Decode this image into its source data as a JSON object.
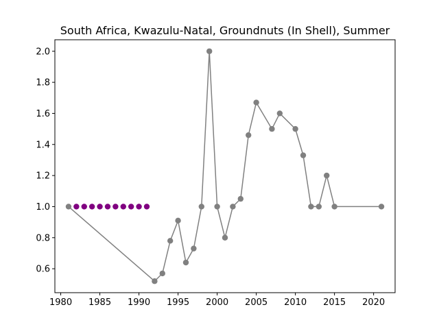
{
  "chart_data": {
    "type": "line",
    "title": "South Africa, Kwazulu-Natal, Groundnuts (In Shell), Summer",
    "xlabel": "",
    "ylabel": "",
    "xlim": [
      1979.25,
      2022.75
    ],
    "ylim": [
      0.446,
      2.074
    ],
    "grid": false,
    "x_ticks": [
      1980,
      1985,
      1990,
      1995,
      2000,
      2005,
      2010,
      2015,
      2020
    ],
    "x_tick_labels": [
      "1980",
      "1985",
      "1990",
      "1995",
      "2000",
      "2005",
      "2010",
      "2015",
      "2020"
    ],
    "y_ticks": [
      0.6,
      0.8,
      1.0,
      1.2,
      1.4,
      1.6,
      1.8,
      2.0
    ],
    "y_tick_labels": [
      "0.6",
      "0.8",
      "1.0",
      "1.2",
      "1.4",
      "1.6",
      "1.8",
      "2.0"
    ],
    "series": [
      {
        "name": "main",
        "x": [
          1981,
          1992,
          1993,
          1994,
          1995,
          1996,
          1997,
          1998,
          1999,
          2000,
          2001,
          2002,
          2003,
          2004,
          2005,
          2007,
          2008,
          2010,
          2011,
          2012,
          2013,
          2014,
          2015,
          2021
        ],
        "y": [
          1.0,
          0.52,
          0.57,
          0.78,
          0.91,
          0.64,
          0.73,
          1.0,
          2.0,
          1.0,
          0.8,
          1.0,
          1.05,
          1.46,
          1.67,
          1.5,
          1.6,
          1.5,
          1.33,
          1.0,
          1.0,
          1.2,
          1.0,
          1.0
        ]
      },
      {
        "name": "highlighted",
        "x": [
          1982,
          1983,
          1984,
          1985,
          1986,
          1987,
          1988,
          1989,
          1990,
          1991
        ],
        "y": [
          1.0,
          1.0,
          1.0,
          1.0,
          1.0,
          1.0,
          1.0,
          1.0,
          1.0,
          1.0
        ]
      }
    ]
  },
  "colors": {
    "line": "#808080",
    "marker": "#808080",
    "highlight": "#800080",
    "axes": "#000000"
  }
}
